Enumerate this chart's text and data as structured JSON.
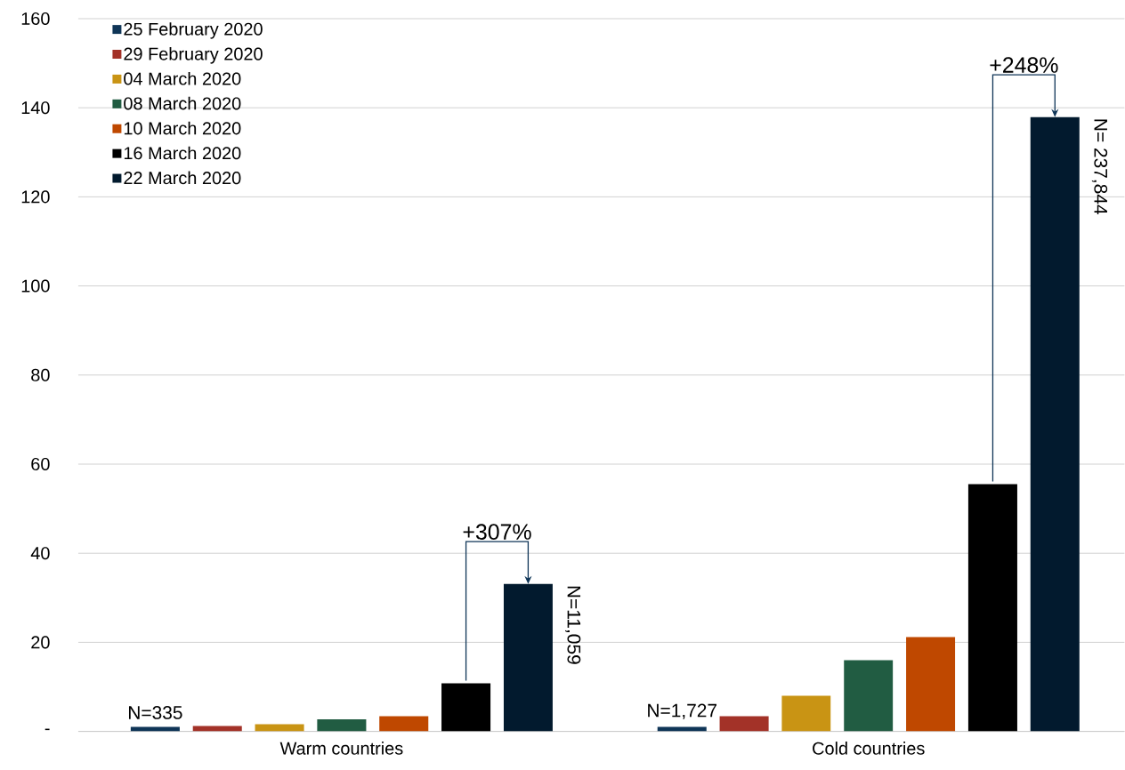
{
  "chart_data": {
    "type": "bar",
    "categories": [
      "Warm countries",
      "Cold countries"
    ],
    "series": [
      {
        "name": "25 February 2020",
        "color": "#0f3557",
        "values": [
          1.0,
          1.0
        ]
      },
      {
        "name": "29 February 2020",
        "color": "#a33228",
        "values": [
          1.2,
          3.4
        ]
      },
      {
        "name": "04 March 2020",
        "color": "#c99414",
        "values": [
          1.6,
          8.0
        ]
      },
      {
        "name": "08 March 2020",
        "color": "#215c42",
        "values": [
          2.7,
          16.0
        ]
      },
      {
        "name": "10 March 2020",
        "color": "#bf4800",
        "values": [
          3.4,
          21.2
        ]
      },
      {
        "name": "16 March 2020",
        "color": "#000000",
        "values": [
          10.8,
          55.5
        ]
      },
      {
        "name": "22 March 2020",
        "color": "#021a2e",
        "values": [
          33.1,
          137.9
        ]
      }
    ],
    "ylim": [
      0,
      160
    ],
    "yticks": [
      {
        "value": 0,
        "label": "-"
      },
      20,
      40,
      60,
      80,
      100,
      120,
      140,
      160
    ],
    "grid": "y",
    "legend": "top left",
    "annotations": [
      "N=335",
      "N=11,059",
      "+307%",
      "N=1,727",
      "N= 237,844",
      "+248%"
    ]
  }
}
